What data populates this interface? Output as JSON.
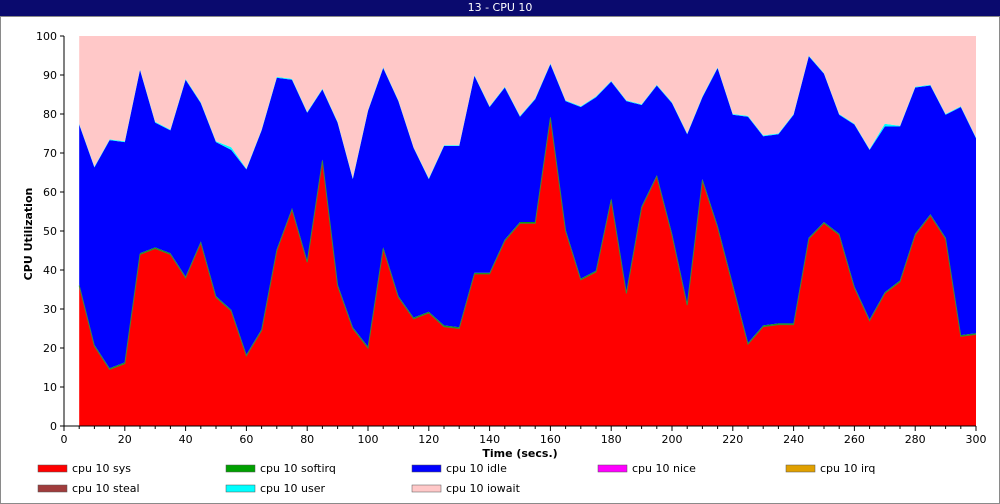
{
  "window": {
    "title": "13 - CPU 10"
  },
  "chart_data": {
    "type": "area",
    "stacked": true,
    "xlabel": "Time (secs.)",
    "ylabel": "CPU Utilization",
    "xlim": [
      0,
      300
    ],
    "ylim": [
      0,
      100
    ],
    "x_ticks": [
      0,
      20,
      40,
      60,
      80,
      100,
      120,
      140,
      160,
      180,
      200,
      220,
      240,
      260,
      280,
      300
    ],
    "y_ticks": [
      0,
      10,
      20,
      30,
      40,
      50,
      60,
      70,
      80,
      90,
      100
    ],
    "grid": false,
    "legend_position": "bottom",
    "x": [
      5,
      10,
      15,
      20,
      25,
      30,
      35,
      40,
      45,
      50,
      55,
      60,
      65,
      70,
      75,
      80,
      85,
      90,
      95,
      100,
      105,
      110,
      115,
      120,
      125,
      130,
      135,
      140,
      145,
      150,
      155,
      160,
      165,
      170,
      175,
      180,
      185,
      190,
      195,
      200,
      205,
      210,
      215,
      220,
      225,
      230,
      235,
      240,
      245,
      250,
      255,
      260,
      265,
      270,
      275,
      280,
      285,
      290,
      295,
      300
    ],
    "series": [
      {
        "name": "cpu 10 sys",
        "color": "#ff0000",
        "values": [
          36,
          20.5,
          14.5,
          16,
          44,
          45.5,
          44,
          38,
          47,
          33,
          29.5,
          18,
          24.5,
          45,
          55.5,
          42,
          68,
          36,
          25,
          20,
          45.5,
          33,
          27.5,
          29,
          25.5,
          25,
          39,
          39,
          47.5,
          52,
          52,
          79,
          50,
          37.5,
          39.5,
          58,
          34,
          56,
          64,
          49,
          31,
          63,
          51,
          36,
          21,
          25.5,
          26,
          26,
          48,
          52,
          49,
          35.5,
          27,
          34,
          37,
          49,
          54,
          48,
          23,
          23.5
        ]
      },
      {
        "name": "cpu 10 softirq",
        "color": "#00a000",
        "values": [
          0.3,
          0.3,
          0.3,
          0.3,
          0.3,
          0.3,
          0.3,
          0.3,
          0.3,
          0.3,
          0.3,
          0.3,
          0.3,
          0.3,
          0.3,
          0.3,
          0.3,
          0.3,
          0.3,
          0.3,
          0.3,
          0.3,
          0.3,
          0.3,
          0.3,
          0.3,
          0.3,
          0.3,
          0.3,
          0.3,
          0.3,
          0.3,
          0.3,
          0.3,
          0.3,
          0.3,
          0.3,
          0.3,
          0.3,
          0.3,
          0.3,
          0.3,
          0.3,
          0.3,
          0.3,
          0.3,
          0.3,
          0.3,
          0.3,
          0.3,
          0.3,
          0.3,
          0.3,
          0.3,
          0.3,
          0.3,
          0.3,
          0.3,
          0.3,
          0.3
        ]
      },
      {
        "name": "cpu 10 idle",
        "color": "#0000ff",
        "values": [
          41,
          45.5,
          58.5,
          56.5,
          47,
          32,
          31.5,
          50.5,
          35.5,
          39.5,
          41,
          47.5,
          51,
          44,
          33,
          38,
          18,
          41.5,
          38,
          60.5,
          46,
          50,
          43.5,
          34,
          46,
          46.5,
          50.5,
          42.5,
          39,
          27,
          31.5,
          13.5,
          33,
          44,
          44.5,
          30,
          49,
          26,
          23,
          33.5,
          43.5,
          21,
          40.5,
          43.5,
          58,
          48.5,
          48.5,
          53.5,
          46.5,
          38,
          30.5,
          41.5,
          43.5,
          42.5,
          39.5,
          37.5,
          33,
          31.5,
          58.5,
          50
        ]
      },
      {
        "name": "cpu 10 nice",
        "color": "#ff00ff",
        "values": [
          0,
          0,
          0,
          0,
          0,
          0,
          0,
          0,
          0,
          0,
          0,
          0,
          0,
          0,
          0,
          0,
          0,
          0,
          0,
          0,
          0,
          0,
          0,
          0,
          0,
          0,
          0,
          0,
          0,
          0,
          0,
          0,
          0,
          0,
          0,
          0,
          0,
          0,
          0,
          0,
          0,
          0,
          0,
          0,
          0,
          0,
          0,
          0,
          0,
          0,
          0,
          0,
          0,
          0,
          0,
          0,
          0,
          0,
          0,
          0
        ]
      },
      {
        "name": "cpu 10 irq",
        "color": "#e0a000",
        "values": [
          0,
          0,
          0,
          0,
          0,
          0,
          0,
          0,
          0,
          0,
          0,
          0,
          0,
          0,
          0,
          0,
          0,
          0,
          0,
          0,
          0,
          0,
          0,
          0,
          0,
          0,
          0,
          0,
          0,
          0,
          0,
          0,
          0,
          0,
          0,
          0,
          0,
          0,
          0,
          0,
          0,
          0,
          0,
          0,
          0,
          0,
          0,
          0,
          0,
          0,
          0,
          0,
          0,
          0,
          0,
          0,
          0,
          0,
          0,
          0
        ]
      },
      {
        "name": "cpu 10 steal",
        "color": "#a03c3c",
        "values": [
          0,
          0,
          0,
          0,
          0,
          0,
          0,
          0,
          0,
          0,
          0,
          0,
          0,
          0,
          0,
          0,
          0,
          0,
          0,
          0,
          0,
          0,
          0,
          0,
          0,
          0,
          0,
          0,
          0,
          0,
          0,
          0,
          0,
          0,
          0,
          0,
          0,
          0,
          0,
          0,
          0,
          0,
          0,
          0,
          0,
          0,
          0,
          0,
          0,
          0,
          0,
          0,
          0,
          0,
          0,
          0,
          0,
          0,
          0,
          0
        ]
      },
      {
        "name": "cpu 10 user",
        "color": "#00ffff",
        "values": [
          0.2,
          0.2,
          0.2,
          0.2,
          0.2,
          0.2,
          0.2,
          0.2,
          0.2,
          0.2,
          0.7,
          0.2,
          0.2,
          0.2,
          0.2,
          0.2,
          0.2,
          0.2,
          0.2,
          0.2,
          0.2,
          0.2,
          0.2,
          0.2,
          0.2,
          0.2,
          0.2,
          0.2,
          0.2,
          0.2,
          0.2,
          0.2,
          0.2,
          0.2,
          0.2,
          0.2,
          0.2,
          0.2,
          0.2,
          0.2,
          0.2,
          0.2,
          0.2,
          0.2,
          0.2,
          0.2,
          0.2,
          0.2,
          0.2,
          0.2,
          0.2,
          0.2,
          0.2,
          0.7,
          0.2,
          0.2,
          0.2,
          0.2,
          0.2,
          0.2
        ]
      },
      {
        "name": "cpu 10 iowait",
        "color": "#ffc8c8",
        "values": [
          22.5,
          33.5,
          26.5,
          27,
          8.5,
          22,
          24,
          11,
          17,
          27,
          28.5,
          34,
          24,
          10.5,
          11,
          19.5,
          13.5,
          22,
          36.5,
          19,
          8,
          16.5,
          28.5,
          36.5,
          28,
          28,
          10,
          18,
          13,
          20.5,
          16,
          7,
          16.5,
          18,
          15.5,
          11.5,
          16.5,
          17.5,
          12.5,
          17,
          25,
          15.5,
          8,
          20,
          20.5,
          25.5,
          25,
          20,
          5,
          9.5,
          20,
          22.5,
          29,
          22.5,
          23,
          13,
          12.5,
          20,
          18,
          26
        ]
      }
    ]
  }
}
